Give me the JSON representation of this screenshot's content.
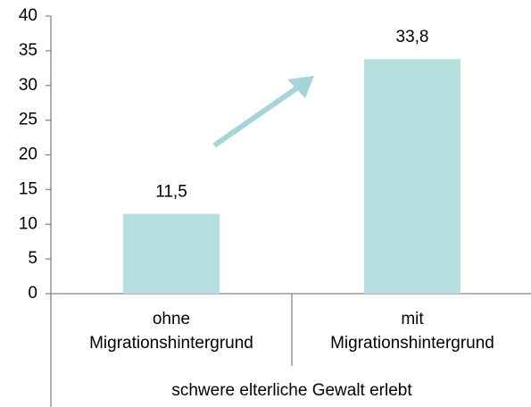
{
  "chart_data": {
    "type": "bar",
    "categories": [
      "ohne Migrationshintergrund",
      "mit Migrationshintergrund"
    ],
    "values": [
      11.5,
      33.8
    ],
    "value_labels": [
      "11,5",
      "33,8"
    ],
    "group_label": "schwere elterliche Gewalt erlebt",
    "color": "#b7dfe0",
    "ylim": [
      0,
      40
    ],
    "yticks": [
      0,
      5,
      10,
      15,
      20,
      25,
      30,
      35,
      40
    ],
    "grid": false
  }
}
